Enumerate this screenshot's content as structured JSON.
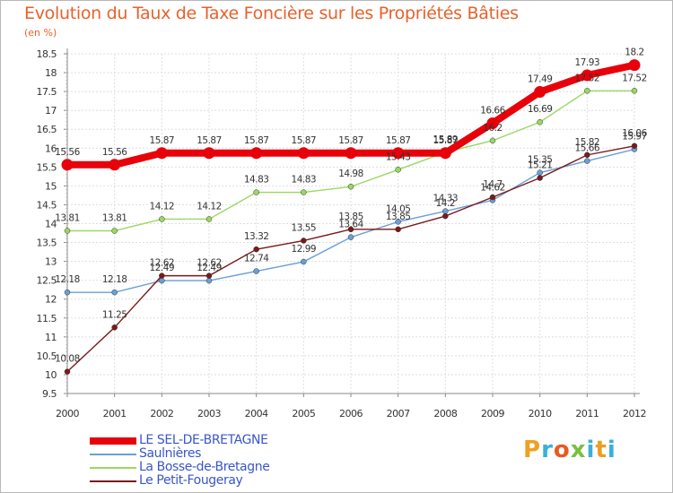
{
  "header": {
    "title": "Evolution du Taux de Taxe Foncière sur les Propriétés Bâties",
    "unit": "(en %)"
  },
  "brand": {
    "text": "Proxiti",
    "colors": [
      "#f0a020",
      "#3ab0d8",
      "#e85a20",
      "#7ac040",
      "#3ab0d8",
      "#e8a020",
      "#3ab0d8"
    ]
  },
  "chart_data": {
    "type": "line",
    "title": "Evolution du Taux de Taxe Foncière sur les Propriétés Bâties",
    "ylabel": "(en %)",
    "xlabel": "",
    "x": [
      "2000",
      "2001",
      "2002",
      "2003",
      "2004",
      "2005",
      "2006",
      "2007",
      "2008",
      "2009",
      "2010",
      "2011",
      "2012"
    ],
    "ylim": [
      9.5,
      18.5
    ],
    "yticks": [
      "9.5",
      "10",
      "10.5",
      "11",
      "11.5",
      "12",
      "12.5",
      "13",
      "13.5",
      "14",
      "14.5",
      "15",
      "15.5",
      "16",
      "16.5",
      "17",
      "17.5",
      "18",
      "18.5"
    ],
    "grid": true,
    "legend": "bottom-left",
    "series": [
      {
        "name": "LE SEL-DE-BRETAGNE",
        "color": "#e8000a",
        "highlight": true,
        "values": [
          15.56,
          15.56,
          15.87,
          15.87,
          15.87,
          15.87,
          15.87,
          15.87,
          15.87,
          16.66,
          17.49,
          17.93,
          18.2
        ],
        "labels": [
          "15.56",
          "15.56",
          "15.87",
          "15.87",
          "15.87",
          "15.87",
          "15.87",
          "15.87",
          "15.87",
          "16.66",
          "17.49",
          "17.93",
          "18.2"
        ]
      },
      {
        "name": "Saulnières",
        "color": "#6a9fd8",
        "highlight": false,
        "values": [
          12.18,
          12.18,
          12.49,
          12.49,
          12.74,
          12.99,
          13.64,
          14.05,
          14.33,
          14.62,
          15.35,
          15.66,
          15.97
        ],
        "labels": [
          "12.18",
          "12.18",
          "12.49",
          "12.49",
          "12.74",
          "12.99",
          "13.64",
          "14.05",
          "14.33",
          "14.62",
          "15.35",
          "15.66",
          "15.97"
        ]
      },
      {
        "name": "La Bosse-de-Bretagne",
        "color": "#9ad860",
        "highlight": false,
        "values": [
          13.81,
          13.81,
          14.12,
          14.12,
          14.83,
          14.83,
          14.98,
          15.43,
          15.89,
          16.2,
          16.69,
          17.52,
          17.52
        ],
        "labels": [
          "13.81",
          "13.81",
          "14.12",
          "14.12",
          "14.83",
          "14.83",
          "14.98",
          "15.43",
          "15.89",
          "16.2",
          "16.69",
          "17.52",
          "17.52"
        ]
      },
      {
        "name": "Le Petit-Fougeray",
        "color": "#7a1a1a",
        "highlight": false,
        "values": [
          10.08,
          11.25,
          12.62,
          12.62,
          13.32,
          13.55,
          13.85,
          13.85,
          14.2,
          14.7,
          15.21,
          15.82,
          16.06
        ],
        "labels": [
          "10.08",
          "11.25",
          "12.62",
          "12.62",
          "13.32",
          "13.55",
          "13.85",
          "13.85",
          "14.2",
          "14.7",
          "15.21",
          "15.82",
          "16.06"
        ]
      }
    ]
  }
}
